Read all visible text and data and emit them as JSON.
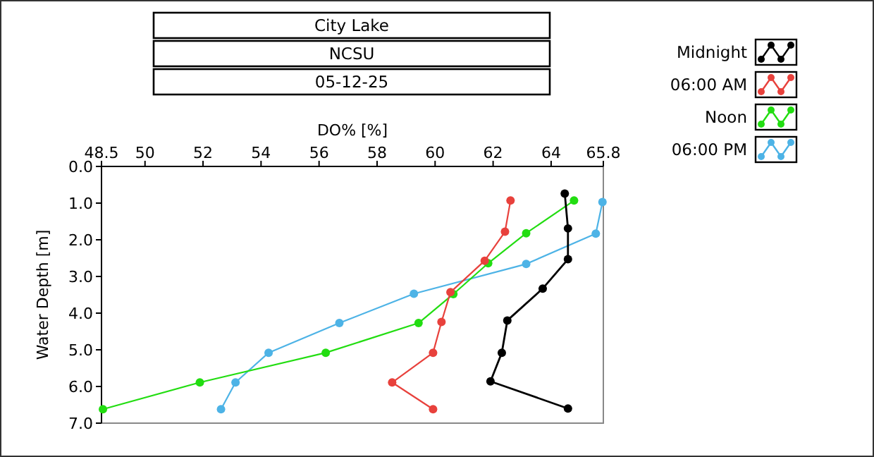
{
  "chart_data": {
    "type": "line",
    "title": "City Lake",
    "subtitle": "NCSU",
    "annotations": [
      "05-12-25"
    ],
    "xlabel": "DO% [%]",
    "ylabel": "Water Depth [m]",
    "xlim": [
      48.5,
      65.8
    ],
    "xticks": [
      48.5,
      50,
      52,
      54,
      56,
      58,
      60,
      62,
      64,
      65.8
    ],
    "ylim": [
      7.0,
      0.0
    ],
    "yticks": [
      {
        "value": 0,
        "label": "0.0"
      },
      {
        "value": 1,
        "label": "1.0"
      },
      {
        "value": 2,
        "label": "2.0"
      },
      {
        "value": 3,
        "label": "3.0"
      },
      {
        "value": 4,
        "label": "4.0"
      },
      {
        "value": 5,
        "label": "5.0"
      },
      {
        "value": 6,
        "label": "6.0"
      },
      {
        "value": 7,
        "label": "7.0"
      }
    ],
    "grid": false,
    "legend": "top right",
    "marker": "circle",
    "line_style": "solid",
    "series": [
      {
        "name": "Midnight",
        "color": "#000000",
        "x": [
          64.47,
          64.58,
          64.58,
          63.71,
          62.49,
          62.3,
          61.91,
          64.58
        ],
        "values": [
          0.74,
          1.69,
          2.53,
          3.33,
          4.2,
          5.08,
          5.86,
          6.6
        ]
      },
      {
        "name": "06:00 AM",
        "color": "#e8413c",
        "x": [
          62.6,
          62.41,
          61.71,
          60.53,
          60.22,
          59.93,
          58.52,
          59.93
        ],
        "values": [
          0.93,
          1.78,
          2.57,
          3.43,
          4.24,
          5.08,
          5.89,
          6.62
        ]
      },
      {
        "name": "Noon",
        "color": "#22dd11",
        "x": [
          64.79,
          63.14,
          61.83,
          60.63,
          59.43,
          56.23,
          51.89,
          48.55
        ],
        "values": [
          0.93,
          1.82,
          2.64,
          3.48,
          4.27,
          5.08,
          5.89,
          6.62
        ]
      },
      {
        "name": "06:00 PM",
        "color": "#4db3e6",
        "x": [
          65.77,
          65.54,
          63.14,
          59.27,
          56.7,
          54.26,
          53.12,
          52.62
        ],
        "values": [
          0.97,
          1.83,
          2.66,
          3.47,
          4.27,
          5.08,
          5.89,
          6.62
        ]
      }
    ]
  }
}
